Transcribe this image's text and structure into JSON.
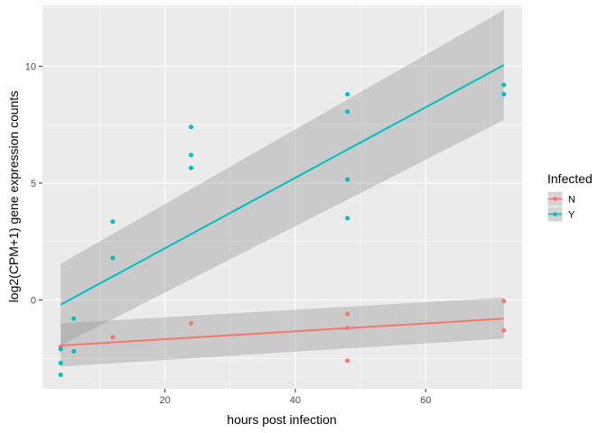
{
  "chart_data": {
    "type": "scatter",
    "title": "",
    "xlabel": "hours post infection",
    "ylabel": "log2(CPM+1) gene expression counts",
    "xlim": [
      1.2,
      74.8
    ],
    "ylim": [
      -3.8,
      12.6
    ],
    "x_ticks": [
      20,
      40,
      60
    ],
    "x_tick_labels": [
      "20",
      "40",
      "60"
    ],
    "y_ticks": [
      0,
      5,
      10
    ],
    "y_tick_labels": [
      "0",
      "5",
      "10"
    ],
    "grid": true,
    "legend": {
      "title": "Infected",
      "position": "right"
    },
    "series": [
      {
        "name": "N",
        "color": "#F8766D",
        "points": [
          [
            4,
            -2.0
          ],
          [
            12,
            -1.6
          ],
          [
            24,
            -1.0
          ],
          [
            48,
            -0.6
          ],
          [
            48,
            -1.2
          ],
          [
            48,
            -2.6
          ],
          [
            72,
            -0.05
          ],
          [
            72,
            -1.3
          ]
        ],
        "fit": {
          "x": [
            4,
            72
          ],
          "y": [
            -1.95,
            -0.8
          ]
        },
        "ci": {
          "x": [
            4,
            72
          ],
          "upper": [
            -1.0,
            0.1
          ],
          "lower": [
            -2.85,
            -1.65
          ]
        }
      },
      {
        "name": "Y",
        "color": "#00BFC4",
        "points": [
          [
            4,
            -2.1
          ],
          [
            4,
            -2.7
          ],
          [
            4,
            -3.2
          ],
          [
            6,
            -0.8
          ],
          [
            6,
            -2.2
          ],
          [
            12,
            3.35
          ],
          [
            12,
            1.8
          ],
          [
            24,
            7.4
          ],
          [
            24,
            6.2
          ],
          [
            24,
            5.65
          ],
          [
            48,
            8.8
          ],
          [
            48,
            8.05
          ],
          [
            48,
            5.15
          ],
          [
            48,
            3.5
          ],
          [
            72,
            9.2
          ],
          [
            72,
            8.8
          ]
        ],
        "fit": {
          "x": [
            4,
            72
          ],
          "y": [
            -0.2,
            10.05
          ]
        },
        "ci": {
          "x": [
            4,
            72
          ],
          "upper": [
            1.55,
            12.4
          ],
          "lower": [
            -1.95,
            7.7
          ]
        }
      }
    ]
  }
}
